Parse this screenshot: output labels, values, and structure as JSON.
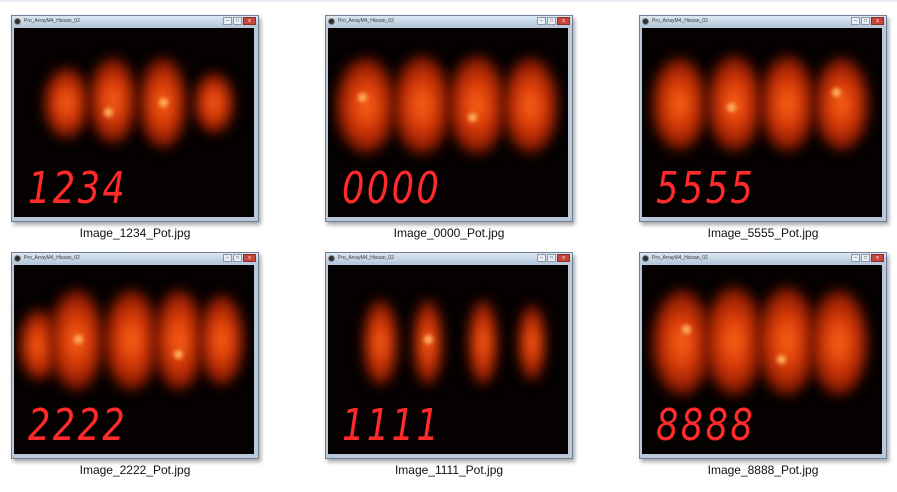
{
  "window_title": "Pro_ArrayM4_Hissan_02",
  "controls": {
    "minimize": "–",
    "maximize": "□",
    "close": "x"
  },
  "thumbnails": [
    {
      "digits": "1234",
      "filename": "Image_1234_Pot.jpg"
    },
    {
      "digits": "0000",
      "filename": "Image_0000_Pot.jpg"
    },
    {
      "digits": "5555",
      "filename": "Image_5555_Pot.jpg"
    },
    {
      "digits": "2222",
      "filename": "Image_2222_Pot.jpg"
    },
    {
      "digits": "1111",
      "filename": "Image_1111_Pot.jpg"
    },
    {
      "digits": "8888",
      "filename": "Image_8888_Pot.jpg"
    }
  ]
}
